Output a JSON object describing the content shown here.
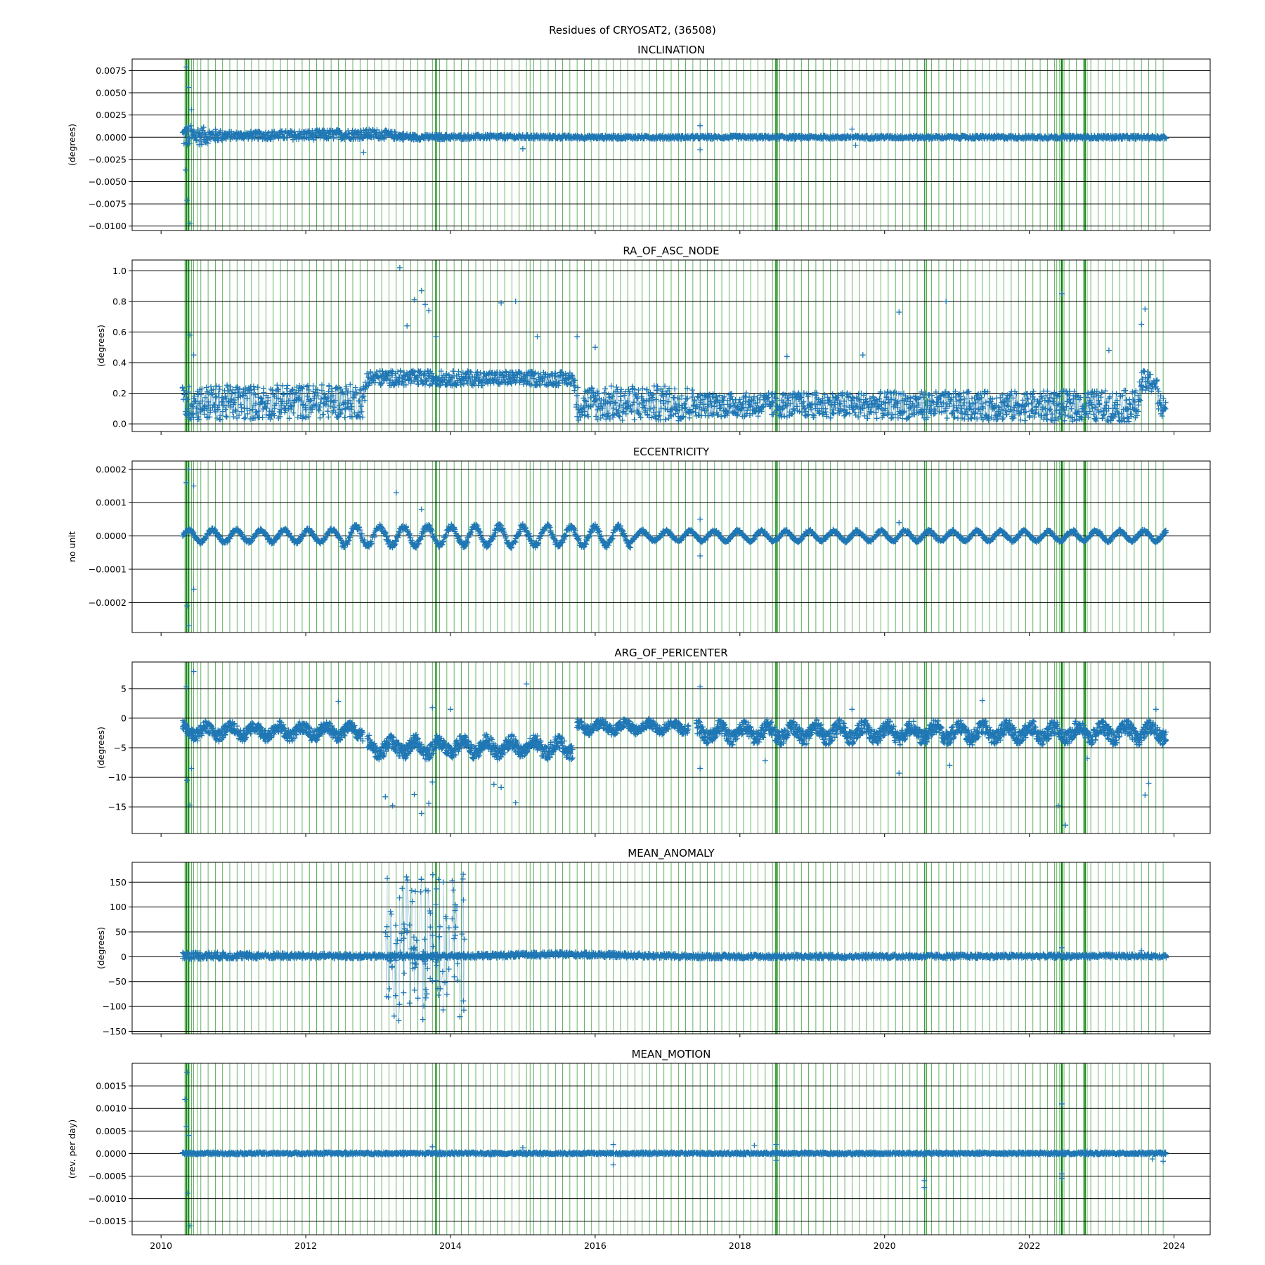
{
  "figure": {
    "suptitle": "Residues of CRYOSAT2, (36508)"
  },
  "colors": {
    "series": "#1f77b4",
    "events": "#008000",
    "grid": "#000000"
  },
  "chart_data": [
    {
      "type": "scatter",
      "title": "INCLINATION",
      "ylabel": "(degrees)",
      "xlim": [
        2009.6,
        2024.5
      ],
      "ylim": [
        -0.0105,
        0.0088
      ],
      "yticks": [
        -0.01,
        -0.0075,
        -0.005,
        -0.0025,
        0,
        0.0025,
        0.005,
        0.0075
      ],
      "ytick_labels": [
        "−0.0100",
        "−0.0075",
        "−0.0050",
        "−0.0025",
        "0.0000",
        "0.0025",
        "0.0050",
        "0.0075"
      ],
      "band": [
        {
          "x": 2010.3,
          "lo": -0.0012,
          "hi": 0.0015
        },
        {
          "x": 2011.0,
          "lo": -0.0002,
          "hi": 0.0006
        },
        {
          "x": 2012.0,
          "lo": -0.0003,
          "hi": 0.0008
        },
        {
          "x": 2013.0,
          "lo": -0.0002,
          "hi": 0.0009
        },
        {
          "x": 2013.5,
          "lo": -0.0003,
          "hi": 0.0003
        },
        {
          "x": 2014.5,
          "lo": -0.0002,
          "hi": 0.0003
        },
        {
          "x": 2016.0,
          "lo": -0.0002,
          "hi": 0.0002
        },
        {
          "x": 2020.0,
          "lo": -0.0002,
          "hi": 0.0002
        },
        {
          "x": 2023.9,
          "lo": -0.0002,
          "hi": 0.0002
        }
      ],
      "outliers": [
        {
          "x": 2010.35,
          "y": 0.0079
        },
        {
          "x": 2010.38,
          "y": 0.0056
        },
        {
          "x": 2010.42,
          "y": 0.0031
        },
        {
          "x": 2010.34,
          "y": -0.0037
        },
        {
          "x": 2010.36,
          "y": -0.0071
        },
        {
          "x": 2010.4,
          "y": -0.0097
        },
        {
          "x": 2012.8,
          "y": -0.0017
        },
        {
          "x": 2015.0,
          "y": -0.0013
        },
        {
          "x": 2017.45,
          "y": 0.0013
        },
        {
          "x": 2017.45,
          "y": -0.0014
        },
        {
          "x": 2019.55,
          "y": 0.0009
        },
        {
          "x": 2019.6,
          "y": -0.0009
        }
      ]
    },
    {
      "type": "scatter",
      "title": "RA_OF_ASC_NODE",
      "ylabel": "(degrees)",
      "xlim": [
        2009.6,
        2024.5
      ],
      "ylim": [
        -0.05,
        1.07
      ],
      "yticks": [
        0,
        0.2,
        0.4,
        0.6,
        0.8,
        1.0
      ],
      "ytick_labels": [
        "0.0",
        "0.2",
        "0.4",
        "0.6",
        "0.8",
        "1.0"
      ],
      "band": [
        {
          "x": 2010.3,
          "lo": 0.02,
          "hi": 0.25
        },
        {
          "x": 2012.8,
          "lo": 0.04,
          "hi": 0.26
        },
        {
          "x": 2012.85,
          "lo": 0.25,
          "hi": 0.35
        },
        {
          "x": 2015.7,
          "lo": 0.25,
          "hi": 0.34
        },
        {
          "x": 2015.75,
          "lo": 0.02,
          "hi": 0.25
        },
        {
          "x": 2017.3,
          "lo": 0.02,
          "hi": 0.25
        },
        {
          "x": 2017.4,
          "lo": 0.05,
          "hi": 0.2
        },
        {
          "x": 2023.5,
          "lo": 0.01,
          "hi": 0.22
        },
        {
          "x": 2023.55,
          "lo": 0.2,
          "hi": 0.35
        },
        {
          "x": 2023.75,
          "lo": 0.2,
          "hi": 0.33
        },
        {
          "x": 2023.8,
          "lo": 0.03,
          "hi": 0.2
        },
        {
          "x": 2023.9,
          "lo": 0.03,
          "hi": 0.2
        }
      ],
      "outliers": [
        {
          "x": 2010.4,
          "y": 0.58
        },
        {
          "x": 2010.45,
          "y": 0.45
        },
        {
          "x": 2013.3,
          "y": 1.02
        },
        {
          "x": 2013.5,
          "y": 0.81
        },
        {
          "x": 2013.6,
          "y": 0.87
        },
        {
          "x": 2013.65,
          "y": 0.78
        },
        {
          "x": 2013.7,
          "y": 0.74
        },
        {
          "x": 2013.4,
          "y": 0.64
        },
        {
          "x": 2013.8,
          "y": 0.57
        },
        {
          "x": 2014.7,
          "y": 0.79
        },
        {
          "x": 2014.9,
          "y": 0.8
        },
        {
          "x": 2015.2,
          "y": 0.57
        },
        {
          "x": 2015.75,
          "y": 0.57
        },
        {
          "x": 2016.0,
          "y": 0.5
        },
        {
          "x": 2018.65,
          "y": 0.44
        },
        {
          "x": 2019.7,
          "y": 0.45
        },
        {
          "x": 2020.2,
          "y": 0.73
        },
        {
          "x": 2020.85,
          "y": 0.8
        },
        {
          "x": 2022.45,
          "y": 0.85
        },
        {
          "x": 2023.1,
          "y": 0.48
        },
        {
          "x": 2023.55,
          "y": 0.65
        },
        {
          "x": 2023.6,
          "y": 0.75
        }
      ]
    },
    {
      "type": "scatter",
      "title": "ECCENTRICITY",
      "ylabel": "no unit",
      "xlim": [
        2009.6,
        2024.5
      ],
      "ylim": [
        -0.00029,
        0.000225
      ],
      "yticks": [
        -0.0002,
        -0.0001,
        0,
        0.0001,
        0.0002
      ],
      "ytick_labels": [
        "−0.0002",
        "−0.0001",
        "0.0000",
        "0.0001",
        "0.0002"
      ],
      "oscillation": {
        "center": 0,
        "amplitude": [
          1.8e-05,
          2.8e-05,
          1.5e-05
        ],
        "period_years": 0.33,
        "x_range": [
          2010.3,
          2023.9
        ]
      },
      "outliers": [
        {
          "x": 2010.35,
          "y": 0.00016
        },
        {
          "x": 2010.38,
          "y": 0.0002
        },
        {
          "x": 2010.45,
          "y": 0.00015
        },
        {
          "x": 2010.36,
          "y": -0.00021
        },
        {
          "x": 2010.38,
          "y": -0.00027
        },
        {
          "x": 2010.45,
          "y": -0.00016
        },
        {
          "x": 2013.25,
          "y": 0.00013
        },
        {
          "x": 2013.6,
          "y": 8e-05
        },
        {
          "x": 2017.45,
          "y": 5e-05
        },
        {
          "x": 2017.45,
          "y": -6e-05
        },
        {
          "x": 2020.2,
          "y": 4e-05
        }
      ]
    },
    {
      "type": "scatter",
      "title": "ARG_OF_PERICENTER",
      "ylabel": "(degrees)",
      "xlim": [
        2009.6,
        2024.5
      ],
      "ylim": [
        -19.5,
        9.5
      ],
      "yticks": [
        -15,
        -10,
        -5,
        0,
        5
      ],
      "ytick_labels": [
        "−15",
        "−10",
        "−5",
        "0",
        "5"
      ],
      "segments": [
        {
          "x": [
            2010.3,
            2012.8
          ],
          "hi": -0.2,
          "lo": -3.5,
          "period_years": 0.33
        },
        {
          "x": [
            2012.85,
            2015.7
          ],
          "hi": -2.5,
          "lo": -6.5,
          "period_years": 0.33
        },
        {
          "x": [
            2015.75,
            2017.3
          ],
          "hi": 0.0,
          "lo": -2.5,
          "period_years": 0.33
        },
        {
          "x": [
            2017.4,
            2023.9
          ],
          "hi": 0.0,
          "lo": -4.0,
          "period_years": 0.33
        }
      ],
      "outliers": [
        {
          "x": 2010.35,
          "y": 5.3
        },
        {
          "x": 2010.45,
          "y": 7.9
        },
        {
          "x": 2010.36,
          "y": -10.5
        },
        {
          "x": 2010.4,
          "y": -14.7
        },
        {
          "x": 2010.42,
          "y": -8.5
        },
        {
          "x": 2012.45,
          "y": 2.8
        },
        {
          "x": 2013.1,
          "y": -13.3
        },
        {
          "x": 2013.2,
          "y": -14.8
        },
        {
          "x": 2013.5,
          "y": -12.9
        },
        {
          "x": 2013.6,
          "y": -16.1
        },
        {
          "x": 2013.7,
          "y": -14.4
        },
        {
          "x": 2013.75,
          "y": 1.8
        },
        {
          "x": 2013.75,
          "y": -10.8
        },
        {
          "x": 2014.0,
          "y": 1.5
        },
        {
          "x": 2014.6,
          "y": -11.2
        },
        {
          "x": 2014.7,
          "y": -11.7
        },
        {
          "x": 2014.9,
          "y": -14.3
        },
        {
          "x": 2015.05,
          "y": 5.8
        },
        {
          "x": 2017.45,
          "y": 5.3
        },
        {
          "x": 2017.45,
          "y": -8.5
        },
        {
          "x": 2018.35,
          "y": -7.2
        },
        {
          "x": 2019.55,
          "y": 1.5
        },
        {
          "x": 2020.2,
          "y": -9.3
        },
        {
          "x": 2020.9,
          "y": -8.0
        },
        {
          "x": 2021.35,
          "y": 3.0
        },
        {
          "x": 2022.4,
          "y": -14.8
        },
        {
          "x": 2022.5,
          "y": -18.1
        },
        {
          "x": 2022.8,
          "y": -6.8
        },
        {
          "x": 2023.6,
          "y": -13.0
        },
        {
          "x": 2023.65,
          "y": -11.0
        },
        {
          "x": 2023.75,
          "y": 1.5
        }
      ]
    },
    {
      "type": "scatter",
      "title": "MEAN_ANOMALY",
      "ylabel": "(degrees)",
      "xlim": [
        2009.6,
        2024.5
      ],
      "ylim": [
        -155,
        190
      ],
      "yticks": [
        -150,
        -100,
        -50,
        0,
        50,
        100,
        150
      ],
      "ytick_labels": [
        "−150",
        "−100",
        "−50",
        "0",
        "50",
        "100",
        "150"
      ],
      "band": [
        {
          "x": 2010.3,
          "lo": -5,
          "hi": 10
        },
        {
          "x": 2013.1,
          "lo": -3,
          "hi": 5
        },
        {
          "x": 2014.2,
          "lo": -3,
          "hi": 6
        },
        {
          "x": 2015.5,
          "lo": 0,
          "hi": 10
        },
        {
          "x": 2017.5,
          "lo": -4,
          "hi": 5
        },
        {
          "x": 2023.9,
          "lo": -2,
          "hi": 5
        }
      ],
      "scatter_cloud": {
        "x_range": [
          2013.1,
          2014.2
        ],
        "y_range": [
          -140,
          175
        ],
        "count": 140
      },
      "outliers": [
        {
          "x": 2022.45,
          "y": 18
        },
        {
          "x": 2023.55,
          "y": 12
        }
      ]
    },
    {
      "type": "scatter",
      "title": "MEAN_MOTION",
      "ylabel": "(rev. per day)",
      "xlim": [
        2009.6,
        2024.5
      ],
      "ylim": [
        -0.0018,
        0.002
      ],
      "yticks": [
        -0.0015,
        -0.001,
        -0.0005,
        0,
        0.0005,
        0.001,
        0.0015
      ],
      "ytick_labels": [
        "−0.0015",
        "−0.0010",
        "−0.0005",
        "0.0000",
        "0.0005",
        "0.0010",
        "0.0015"
      ],
      "xticks": [
        2010,
        2012,
        2014,
        2016,
        2018,
        2020,
        2022,
        2024
      ],
      "xtick_labels": [
        "2010",
        "2012",
        "2014",
        "2016",
        "2018",
        "2020",
        "2022",
        "2024"
      ],
      "band": [
        {
          "x": 2010.3,
          "lo": -2e-05,
          "hi": 3e-05
        },
        {
          "x": 2023.9,
          "lo": -2e-05,
          "hi": 3e-05
        }
      ],
      "outliers": [
        {
          "x": 2010.33,
          "y": 0.0012
        },
        {
          "x": 2010.36,
          "y": 0.0018
        },
        {
          "x": 2010.38,
          "y": 0.0004
        },
        {
          "x": 2010.35,
          "y": 0.0006
        },
        {
          "x": 2010.37,
          "y": -0.00088
        },
        {
          "x": 2010.4,
          "y": -0.0016
        },
        {
          "x": 2013.75,
          "y": 0.00015
        },
        {
          "x": 2015.0,
          "y": 0.00013
        },
        {
          "x": 2016.25,
          "y": 0.0002
        },
        {
          "x": 2016.25,
          "y": -0.00025
        },
        {
          "x": 2018.2,
          "y": 0.00018
        },
        {
          "x": 2018.5,
          "y": 0.0002
        },
        {
          "x": 2018.5,
          "y": -0.00015
        },
        {
          "x": 2020.55,
          "y": -0.0006
        },
        {
          "x": 2020.55,
          "y": -0.00075
        },
        {
          "x": 2022.45,
          "y": 0.0011
        },
        {
          "x": 2022.45,
          "y": -0.00045
        },
        {
          "x": 2022.45,
          "y": -0.00055
        },
        {
          "x": 2022.8,
          "y": 5e-05
        },
        {
          "x": 2023.7,
          "y": -0.00012
        },
        {
          "x": 2023.85,
          "y": -0.00017
        }
      ]
    }
  ],
  "events": {
    "regular": {
      "start": 2010.45,
      "end": 2023.85,
      "step": 0.1
    },
    "extra": [
      2010.33,
      2010.35,
      2010.38,
      2010.42,
      2010.5,
      2013.8,
      2015.1,
      2018.5,
      2018.52,
      2020.55,
      2020.57,
      2020.58,
      2022.38,
      2022.42,
      2022.45,
      2022.48,
      2022.77,
      2022.8
    ],
    "thick": [
      2010.35,
      2010.38,
      2013.8,
      2018.5,
      2020.56,
      2022.45,
      2022.77
    ]
  }
}
